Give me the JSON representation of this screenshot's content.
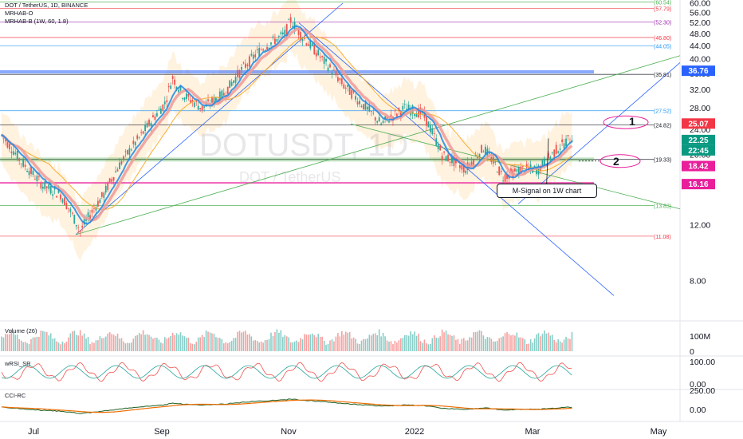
{
  "header": {
    "title": "DOT / TetherUS, 1D, BINANCE",
    "indicator1": "MRHAB-O",
    "indicator2": "MRHAB-B (1W, 60, 1.8)"
  },
  "watermark": {
    "symbol": "DOTUSDT, 1D",
    "name": "DOT / TetherUS"
  },
  "annotations": {
    "callout": "M-Signal on 1W chart",
    "marker1": "1",
    "marker2": "2"
  },
  "price_tags": [
    {
      "label": "36.76",
      "value": 36.76,
      "color": "#2962ff"
    },
    {
      "label": "25.07",
      "value": 25.07,
      "color": "#f23645"
    },
    {
      "label": "22.25",
      "value": 22.25,
      "color": "#089981"
    },
    {
      "label": "22:45",
      "value": 21.45,
      "color": "#089981"
    },
    {
      "label": "18.42",
      "value": 18.42,
      "color": "#e91e9b"
    },
    {
      "label": "16.16",
      "value": 16.16,
      "color": "#e91e9b"
    }
  ],
  "level_labels": [
    {
      "label": "(60.54)",
      "value": 60.54,
      "color": "#4caf50"
    },
    {
      "label": "(57.79)",
      "value": 57.79,
      "color": "#f23645"
    },
    {
      "label": "(52.30)",
      "value": 52.3,
      "color": "#9c27b0"
    },
    {
      "label": "(46.80)",
      "value": 46.8,
      "color": "#f23645"
    },
    {
      "label": "(44.05)",
      "value": 44.05,
      "color": "#2196f3"
    },
    {
      "label": "(35.81)",
      "value": 35.81,
      "color": "#131722"
    },
    {
      "label": "(27.52)",
      "value": 27.52,
      "color": "#2196f3"
    },
    {
      "label": "(24.82)",
      "value": 24.82,
      "color": "#131722"
    },
    {
      "label": "(19.33)",
      "value": 19.33,
      "color": "#131722"
    },
    {
      "label": "(13.83)",
      "value": 13.83,
      "color": "#4caf50"
    },
    {
      "label": "(11.08)",
      "value": 11.08,
      "color": "#f23645"
    }
  ],
  "panels": {
    "volume": {
      "label": "Volume (26)",
      "ticks": [
        "100M",
        "0"
      ]
    },
    "wrsi": {
      "label": "wRSI_SR",
      "ticks": [
        "100.00",
        "0.00"
      ]
    },
    "cci": {
      "label": "CCI-RC",
      "ticks": [
        "250.00",
        "0.00"
      ]
    }
  },
  "chart_data": {
    "type": "candlestick",
    "title": "DOT / TetherUS, 1D, BINANCE",
    "y_scale": "log",
    "ylim": [
      6.5,
      60
    ],
    "y_ticks": [
      "60.00",
      "56.00",
      "52.00",
      "48.00",
      "44.00",
      "40.00",
      "36.00",
      "32.00",
      "28.00",
      "24.00",
      "20.00",
      "16.00",
      "12.00",
      "8.00"
    ],
    "x_ticks": [
      "Jul",
      "Sep",
      "Nov",
      "2022",
      "Mar",
      "May"
    ],
    "close_series": {
      "x": [
        "Jun 10",
        "Jun 20",
        "Jul 1",
        "Jul 10",
        "Jul 20",
        "Aug 1",
        "Aug 10",
        "Aug 20",
        "Sep 1",
        "Sep 5",
        "Sep 10",
        "Sep 20",
        "Oct 1",
        "Oct 10",
        "Oct 20",
        "Nov 1",
        "Nov 4",
        "Nov 10",
        "Nov 20",
        "Dec 1",
        "Dec 10",
        "Dec 20",
        "Jan 1",
        "Jan 10",
        "Jan 20",
        "Feb 1",
        "Feb 10",
        "Feb 20",
        "Mar 1",
        "Mar 10",
        "Mar 20",
        "Mar 28"
      ],
      "y": [
        23,
        19,
        16,
        15,
        11.5,
        15,
        19,
        23,
        29,
        35,
        31,
        28,
        31,
        37,
        43,
        48,
        53,
        47,
        40,
        33,
        29,
        25,
        28,
        27,
        20,
        18,
        21,
        17,
        18,
        18,
        21,
        23
      ]
    },
    "levels": [
      60.54,
      57.79,
      52.3,
      46.8,
      44.05,
      35.81,
      27.52,
      24.82,
      19.33,
      13.83,
      11.08
    ],
    "grid": false
  }
}
